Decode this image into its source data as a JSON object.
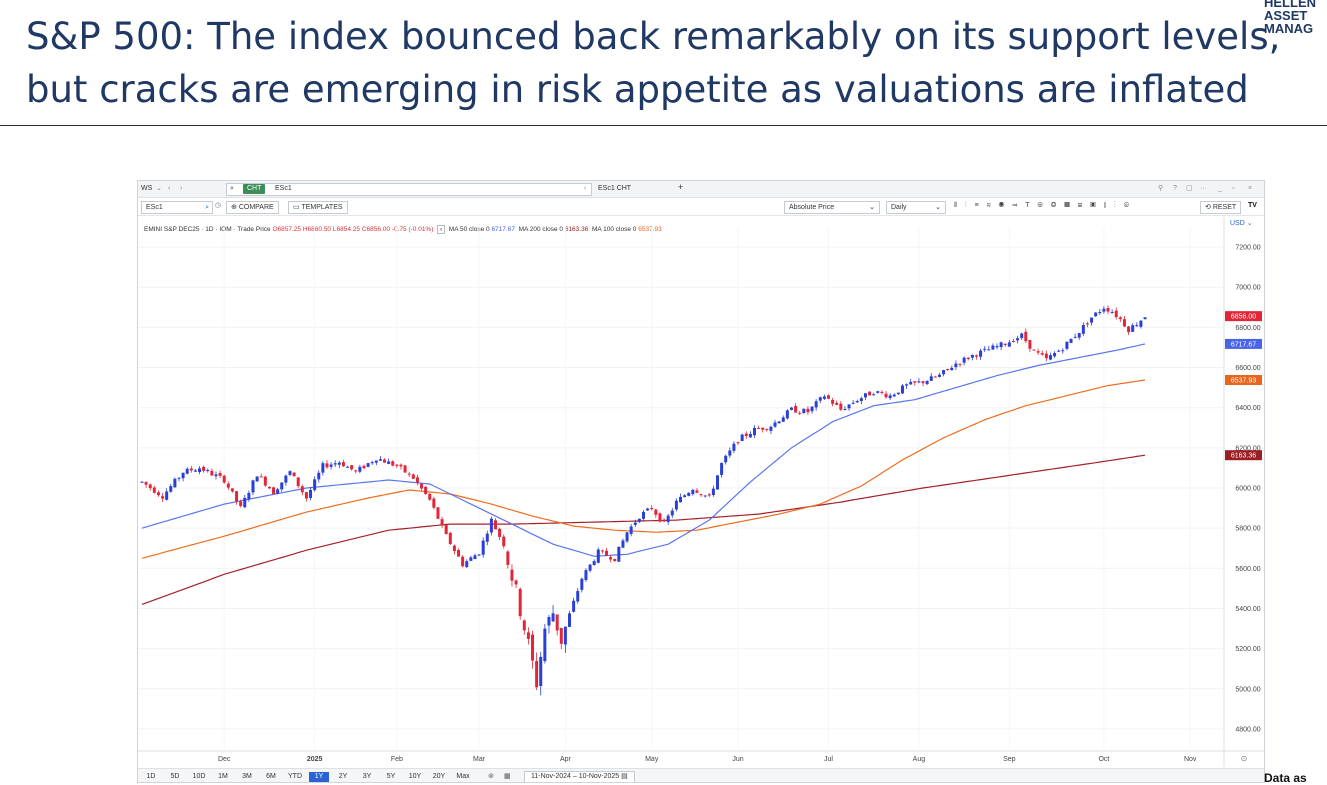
{
  "slide": {
    "title_line1": "S&P 500: The index bounced back remarkably on its support levels,",
    "title_line2": "but cracks are emerging in risk appetite as valuations are inflated",
    "logo_lines": [
      "HELLEN",
      "ASSET",
      "MANAG"
    ],
    "footnote": "Data as"
  },
  "tabbar": {
    "ws_label": "WS",
    "cht_badge": "CHT",
    "symbol_tab": "ESc1",
    "second_tab": "ESc1 CHT",
    "add_tab": "+"
  },
  "toolbar": {
    "symbol": "ESc1",
    "compare": "COMPARE",
    "templates": "TEMPLATES",
    "price_mode": "Absolute Price",
    "interval": "Daily",
    "reset": "RESET"
  },
  "legend": {
    "instrument": "EMINI S&P DEC25 · 1D · IOM · Trade Price",
    "open": "O6857.25",
    "high": "H6860.50",
    "low": "L6854.25",
    "close": "C6856.00",
    "change": "-0.75 (-0.01%)",
    "ma50_label": "MA 50 close 0",
    "ma50_value": "6717.67",
    "ma200_label": "MA 200 close 0",
    "ma200_value": "6163.36",
    "ma100_label": "MA 100 close 0",
    "ma100_value": "6537.93"
  },
  "bottombar": {
    "ranges": [
      "1D",
      "5D",
      "10D",
      "1M",
      "3M",
      "6M",
      "YTD",
      "1Y",
      "2Y",
      "3Y",
      "5Y",
      "10Y",
      "20Y",
      "Max"
    ],
    "active_range": "1Y",
    "date_range": "11-Nov-2024 – 10-Nov-2025"
  },
  "colors": {
    "title": "#1f3864",
    "up_candle": "#2a3fd6",
    "down_candle": "#e2263a",
    "ma50": "#5a76ee",
    "ma100": "#ef6c1f",
    "ma200": "#a3212b"
  },
  "chart_data": {
    "type": "candlestick",
    "title": "EMINI S&P DEC25",
    "currency": "USD",
    "ylim": [
      4700,
      7300
    ],
    "y_ticks": [
      7200,
      7000,
      6800,
      6600,
      6400,
      6200,
      6000,
      5800,
      5600,
      5400,
      5200,
      5000,
      4800
    ],
    "x_ticks": [
      "Dec",
      "2025",
      "Feb",
      "Mar",
      "Apr",
      "May",
      "Jun",
      "Jul",
      "Aug",
      "Sep",
      "Oct",
      "Nov"
    ],
    "x_tick_positions": [
      20,
      42,
      62,
      82,
      103,
      124,
      145,
      167,
      189,
      211,
      234,
      255
    ],
    "x_range": [
      0,
      262
    ],
    "price_anchors": [
      [
        0,
        6030
      ],
      [
        5,
        5960
      ],
      [
        10,
        6080
      ],
      [
        14,
        6100
      ],
      [
        20,
        6040
      ],
      [
        24,
        5900
      ],
      [
        28,
        6070
      ],
      [
        32,
        5980
      ],
      [
        36,
        6080
      ],
      [
        40,
        5950
      ],
      [
        44,
        6110
      ],
      [
        48,
        6130
      ],
      [
        52,
        6080
      ],
      [
        57,
        6150
      ],
      [
        62,
        6110
      ],
      [
        66,
        6050
      ],
      [
        70,
        5940
      ],
      [
        74,
        5760
      ],
      [
        78,
        5620
      ],
      [
        82,
        5680
      ],
      [
        85,
        5840
      ],
      [
        88,
        5720
      ],
      [
        91,
        5480
      ],
      [
        94,
        5220
      ],
      [
        96,
        5030
      ],
      [
        98,
        5300
      ],
      [
        100,
        5380
      ],
      [
        102,
        5240
      ],
      [
        104,
        5370
      ],
      [
        107,
        5550
      ],
      [
        111,
        5680
      ],
      [
        115,
        5650
      ],
      [
        118,
        5780
      ],
      [
        121,
        5860
      ],
      [
        124,
        5900
      ],
      [
        127,
        5820
      ],
      [
        130,
        5930
      ],
      [
        134,
        6000
      ],
      [
        138,
        5950
      ],
      [
        141,
        6120
      ],
      [
        145,
        6240
      ],
      [
        149,
        6290
      ],
      [
        153,
        6310
      ],
      [
        158,
        6390
      ],
      [
        162,
        6380
      ],
      [
        166,
        6460
      ],
      [
        170,
        6390
      ],
      [
        174,
        6440
      ],
      [
        178,
        6480
      ],
      [
        182,
        6460
      ],
      [
        186,
        6510
      ],
      [
        190,
        6530
      ],
      [
        194,
        6560
      ],
      [
        198,
        6620
      ],
      [
        202,
        6660
      ],
      [
        206,
        6690
      ],
      [
        210,
        6720
      ],
      [
        214,
        6760
      ],
      [
        217,
        6680
      ],
      [
        220,
        6640
      ],
      [
        224,
        6700
      ],
      [
        228,
        6780
      ],
      [
        231,
        6850
      ],
      [
        234,
        6900
      ],
      [
        236,
        6880
      ],
      [
        238,
        6840
      ],
      [
        240,
        6790
      ],
      [
        242,
        6820
      ],
      [
        244,
        6856
      ]
    ],
    "ma50": [
      [
        0,
        5800
      ],
      [
        20,
        5920
      ],
      [
        40,
        6000
      ],
      [
        60,
        6040
      ],
      [
        70,
        6020
      ],
      [
        80,
        5920
      ],
      [
        90,
        5820
      ],
      [
        100,
        5720
      ],
      [
        110,
        5660
      ],
      [
        118,
        5670
      ],
      [
        128,
        5720
      ],
      [
        138,
        5840
      ],
      [
        148,
        6030
      ],
      [
        158,
        6200
      ],
      [
        168,
        6330
      ],
      [
        178,
        6410
      ],
      [
        188,
        6440
      ],
      [
        198,
        6500
      ],
      [
        208,
        6560
      ],
      [
        218,
        6610
      ],
      [
        228,
        6650
      ],
      [
        238,
        6690
      ],
      [
        244,
        6717.67
      ]
    ],
    "ma100": [
      [
        0,
        5650
      ],
      [
        20,
        5760
      ],
      [
        40,
        5880
      ],
      [
        55,
        5950
      ],
      [
        65,
        5990
      ],
      [
        75,
        5970
      ],
      [
        85,
        5920
      ],
      [
        95,
        5860
      ],
      [
        105,
        5810
      ],
      [
        115,
        5790
      ],
      [
        125,
        5780
      ],
      [
        135,
        5790
      ],
      [
        145,
        5830
      ],
      [
        155,
        5870
      ],
      [
        165,
        5920
      ],
      [
        175,
        6010
      ],
      [
        185,
        6140
      ],
      [
        195,
        6250
      ],
      [
        205,
        6340
      ],
      [
        215,
        6410
      ],
      [
        225,
        6460
      ],
      [
        235,
        6510
      ],
      [
        244,
        6537.93
      ]
    ],
    "ma200": [
      [
        0,
        5420
      ],
      [
        20,
        5570
      ],
      [
        40,
        5690
      ],
      [
        60,
        5790
      ],
      [
        75,
        5820
      ],
      [
        90,
        5820
      ],
      [
        110,
        5830
      ],
      [
        130,
        5840
      ],
      [
        150,
        5870
      ],
      [
        170,
        5930
      ],
      [
        190,
        6000
      ],
      [
        210,
        6060
      ],
      [
        230,
        6120
      ],
      [
        244,
        6163.36
      ]
    ],
    "last_price": 6856.0,
    "series": [
      {
        "name": "MA 50 close 0",
        "last": 6717.67
      },
      {
        "name": "MA 100 close 0",
        "last": 6537.93
      },
      {
        "name": "MA 200 close 0",
        "last": 6163.36
      }
    ]
  }
}
